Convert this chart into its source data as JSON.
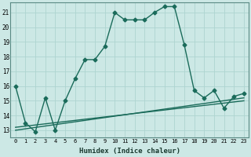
{
  "title": "",
  "xlabel": "Humidex (Indice chaleur)",
  "ylabel": "",
  "xlim": [
    -0.5,
    23.5
  ],
  "ylim": [
    12.5,
    21.7
  ],
  "xticks": [
    0,
    1,
    2,
    3,
    4,
    5,
    6,
    7,
    8,
    9,
    10,
    11,
    12,
    13,
    14,
    15,
    16,
    17,
    18,
    19,
    20,
    21,
    22,
    23
  ],
  "yticks": [
    13,
    14,
    15,
    16,
    17,
    18,
    19,
    20,
    21
  ],
  "background_color": "#cce8e5",
  "grid_color": "#aed4d0",
  "line_color": "#1a6b5a",
  "line1_x": [
    0,
    1,
    2,
    3,
    4,
    5,
    6,
    7,
    8,
    9,
    10,
    11,
    12,
    13,
    14,
    15,
    16,
    17,
    18,
    19,
    20,
    21,
    22,
    23
  ],
  "line1_y": [
    16.0,
    13.5,
    12.9,
    15.2,
    13.0,
    15.0,
    16.5,
    17.8,
    17.8,
    18.7,
    21.0,
    20.5,
    20.5,
    20.5,
    21.0,
    21.4,
    21.4,
    18.8,
    15.7,
    15.2,
    15.7,
    14.5,
    15.3,
    15.5
  ],
  "line2_x": [
    0,
    23
  ],
  "line2_y": [
    13.0,
    15.2
  ],
  "line3_x": [
    0,
    23
  ],
  "line3_y": [
    13.2,
    15.0
  ],
  "marker": "D",
  "markersize": 2.5,
  "linewidth": 1.0
}
